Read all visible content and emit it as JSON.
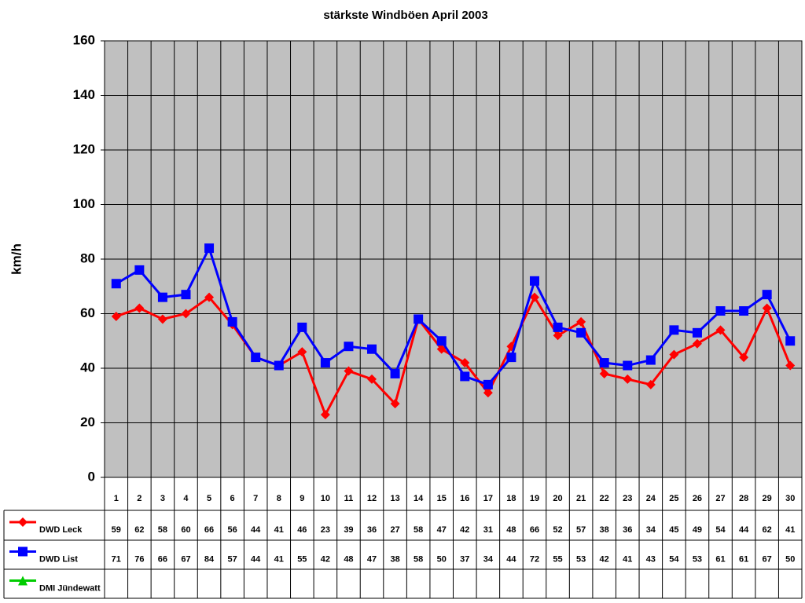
{
  "chart_data": {
    "type": "line",
    "title": "stärkste Windböen April 2003",
    "y_label": "km/h",
    "categories": [
      "1",
      "2",
      "3",
      "4",
      "5",
      "6",
      "7",
      "8",
      "9",
      "10",
      "11",
      "12",
      "13",
      "14",
      "15",
      "16",
      "17",
      "18",
      "19",
      "20",
      "21",
      "22",
      "23",
      "24",
      "25",
      "26",
      "27",
      "28",
      "29",
      "30"
    ],
    "series": [
      {
        "name": "DWD Leck",
        "color": "#ff0000",
        "marker": "diamond",
        "values": [
          59,
          62,
          58,
          60,
          66,
          56,
          44,
          41,
          46,
          23,
          39,
          36,
          27,
          58,
          47,
          42,
          31,
          48,
          66,
          52,
          57,
          38,
          36,
          34,
          45,
          49,
          54,
          44,
          62,
          41
        ]
      },
      {
        "name": "DWD List",
        "color": "#0000ff",
        "marker": "square",
        "values": [
          71,
          76,
          66,
          67,
          84,
          57,
          44,
          41,
          55,
          42,
          48,
          47,
          38,
          58,
          50,
          37,
          34,
          44,
          72,
          55,
          53,
          42,
          41,
          43,
          54,
          53,
          61,
          61,
          67,
          50
        ]
      },
      {
        "name": "DMI Jündewatt",
        "color": "#00cc00",
        "marker": "triangle",
        "values": [
          null,
          null,
          null,
          null,
          null,
          null,
          null,
          null,
          null,
          null,
          null,
          null,
          null,
          null,
          null,
          null,
          null,
          null,
          null,
          null,
          null,
          null,
          null,
          null,
          null,
          null,
          null,
          null,
          null,
          null
        ]
      }
    ],
    "ylim": [
      0,
      160
    ],
    "yticks": [
      0,
      20,
      40,
      60,
      80,
      100,
      120,
      140,
      160
    ],
    "grid": true,
    "data_table": true
  }
}
